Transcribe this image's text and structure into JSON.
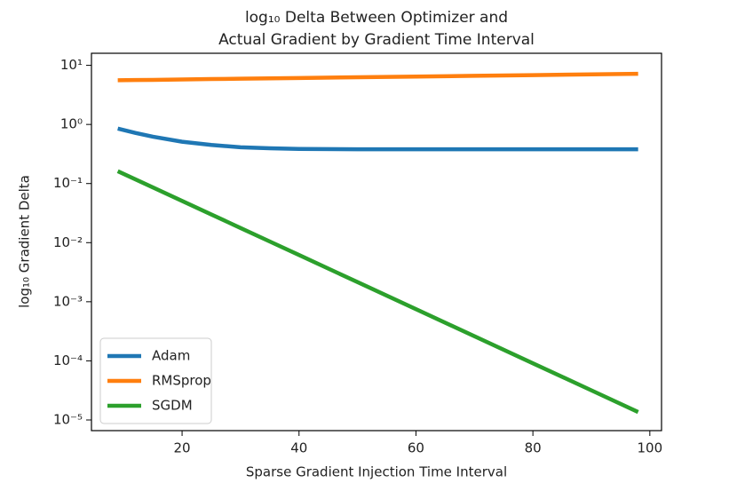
{
  "chart_data": {
    "type": "line",
    "title": [
      "log₁₀ Delta Between Optimizer and",
      "Actual Gradient by Gradient Time Interval"
    ],
    "x_label": "Sparse Gradient Injection Time Interval",
    "y_label": "log₁₀ Gradient Delta",
    "x": [
      9,
      12,
      15,
      20,
      25,
      30,
      35,
      40,
      50,
      60,
      70,
      80,
      90,
      98
    ],
    "series": [
      {
        "name": "Adam",
        "color": "#1f77b4",
        "values": [
          0.85,
          0.72,
          0.62,
          0.51,
          0.45,
          0.41,
          0.395,
          0.385,
          0.38,
          0.38,
          0.38,
          0.38,
          0.38,
          0.38
        ]
      },
      {
        "name": "RMSprop",
        "color": "#ff7f0e",
        "values": [
          5.6,
          5.64,
          5.68,
          5.77,
          5.86,
          5.94,
          6.02,
          6.11,
          6.28,
          6.46,
          6.65,
          6.84,
          7.03,
          7.2
        ]
      },
      {
        "name": "SGDM",
        "color": "#2ca02c",
        "values": [
          0.162,
          0.118,
          0.0861,
          0.0508,
          0.03,
          0.0177,
          0.01045,
          0.00618,
          0.00215,
          0.00075,
          0.000261,
          9.1e-05,
          3.17e-05,
          1.36e-05
        ]
      }
    ],
    "xlim": [
      4.5,
      102
    ],
    "xticks": [
      20,
      40,
      60,
      80,
      100
    ],
    "ylim": [
      6.6e-06,
      16
    ],
    "y_scale": "log",
    "yticks": [
      {
        "value": 10,
        "label": "10¹"
      },
      {
        "value": 1,
        "label": "10⁰"
      },
      {
        "value": 0.1,
        "label": "10⁻¹"
      },
      {
        "value": 0.01,
        "label": "10⁻²"
      },
      {
        "value": 0.001,
        "label": "10⁻³"
      },
      {
        "value": 0.0001,
        "label": "10⁻⁴"
      },
      {
        "value": 1e-05,
        "label": "10⁻⁵"
      }
    ],
    "legend": "lower left"
  }
}
